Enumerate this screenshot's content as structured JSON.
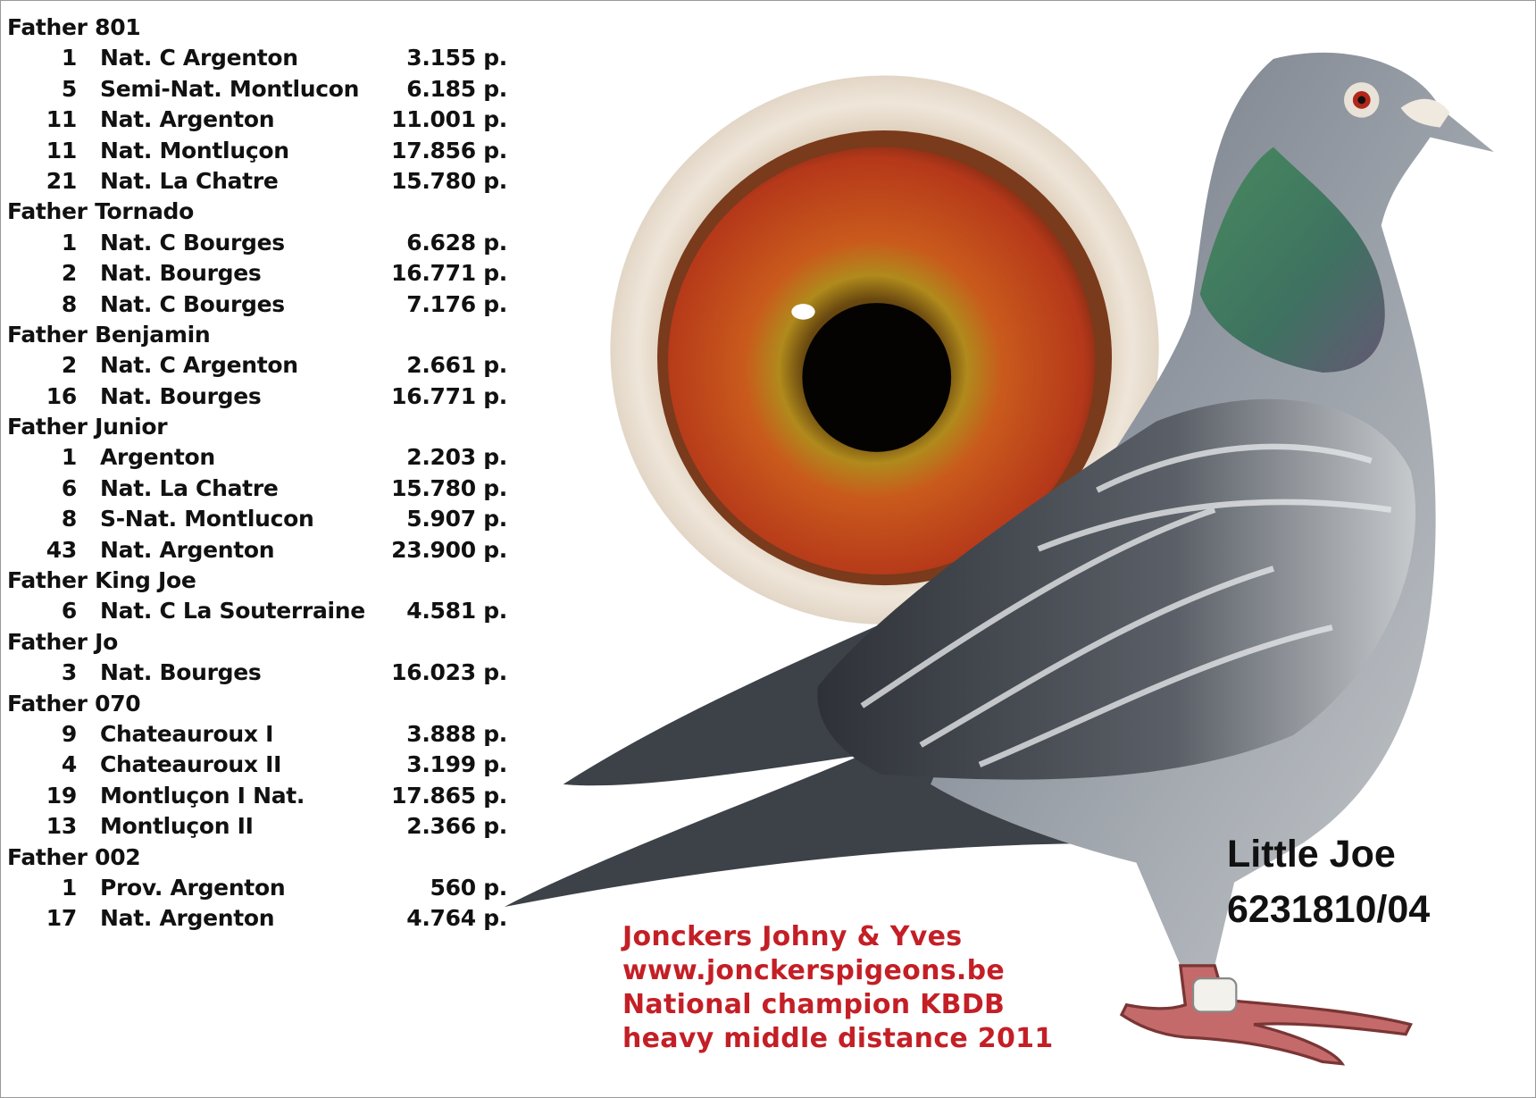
{
  "sections": [
    {
      "father": "Father 801",
      "results": [
        {
          "rank": "1",
          "race": "Nat. C Argenton",
          "points": "3.155 p."
        },
        {
          "rank": "5",
          "race": "Semi-Nat. Montlucon",
          "points": "6.185 p."
        },
        {
          "rank": "11",
          "race": "Nat. Argenton",
          "points": "11.001 p."
        },
        {
          "rank": "11",
          "race": "Nat. Montluçon",
          "points": "17.856 p."
        },
        {
          "rank": "21",
          "race": "Nat. La Chatre",
          "points": "15.780 p."
        }
      ]
    },
    {
      "father": "Father Tornado",
      "results": [
        {
          "rank": "1",
          "race": "Nat. C Bourges",
          "points": "6.628 p."
        },
        {
          "rank": "2",
          "race": "Nat. Bourges",
          "points": "16.771 p."
        },
        {
          "rank": "8",
          "race": "Nat. C Bourges",
          "points": "7.176  p."
        }
      ]
    },
    {
      "father": "Father Benjamin",
      "results": [
        {
          "rank": "2",
          "race": "Nat. C Argenton",
          "points": "2.661 p."
        },
        {
          "rank": "16",
          "race": "Nat. Bourges",
          "points": "16.771 p."
        }
      ]
    },
    {
      "father": "Father Junior",
      "results": [
        {
          "rank": "1",
          "race": "Argenton",
          "points": "2.203 p."
        },
        {
          "rank": "6",
          "race": "Nat. La Chatre",
          "points": "15.780 p."
        },
        {
          "rank": "8",
          "race": "S-Nat. Montlucon",
          "points": "5.907 p."
        },
        {
          "rank": "43",
          "race": "Nat. Argenton",
          "points": "23.900 p."
        }
      ]
    },
    {
      "father": "Father King Joe",
      "results": [
        {
          "rank": "6",
          "race": "Nat. C La Souterraine",
          "points": "4.581 p."
        }
      ]
    },
    {
      "father": "Father Jo",
      "results": [
        {
          "rank": "3",
          "race": "Nat. Bourges",
          "points": "16.023 p."
        }
      ]
    },
    {
      "father": "Father 070",
      "results": [
        {
          "rank": "9",
          "race": "Chateauroux I",
          "points": "3.888 p."
        },
        {
          "rank": "4",
          "race": "Chateauroux II",
          "points": "3.199 p."
        },
        {
          "rank": "19",
          "race": "Montluçon I Nat.",
          "points": "17.865 p."
        },
        {
          "rank": "13",
          "race": "Montluçon II",
          "points": "2.366 p."
        }
      ]
    },
    {
      "father": "Father 002",
      "results": [
        {
          "rank": "1",
          "race": "Prov. Argenton",
          "points": "560 p."
        },
        {
          "rank": "17",
          "race": "Nat. Argenton",
          "points": "4.764 p."
        }
      ]
    }
  ],
  "bird": {
    "name": "Little Joe",
    "ring_number": "6231810/04"
  },
  "promo": {
    "lines": [
      "Jonckers Johny & Yves",
      "www.jonckerspigeons.be",
      "National champion KBDB",
      "heavy middle distance 2011"
    ],
    "color": "#c41f26"
  },
  "images": {
    "eye": "pigeon-eye-closeup",
    "pigeon": "blue-checker-pigeon-photo"
  }
}
